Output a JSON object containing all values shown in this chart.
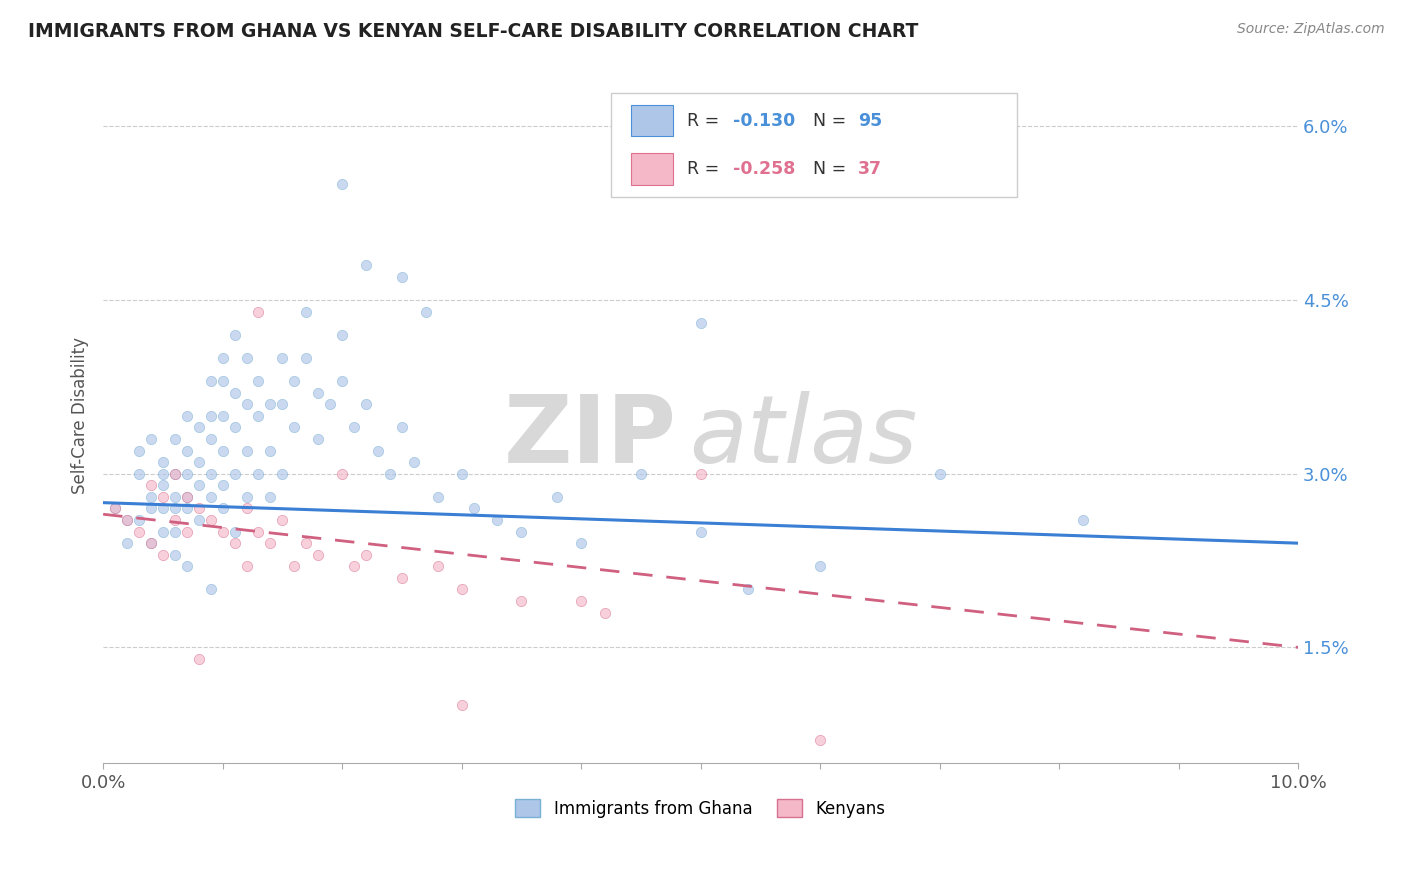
{
  "title": "IMMIGRANTS FROM GHANA VS KENYAN SELF-CARE DISABILITY CORRELATION CHART",
  "source": "Source: ZipAtlas.com",
  "ylabel": "Self-Care Disability",
  "legend_entries": [
    {
      "label": "Immigrants from Ghana",
      "color": "#aec6e8",
      "edge": "#7ab0d4"
    },
    {
      "label": "Kenyans",
      "color": "#f4b8c8",
      "edge": "#d87090"
    }
  ],
  "r_labels": [
    {
      "r_text": "R = ",
      "r_val": "-0.130",
      "n_text": "N = ",
      "n_val": "95",
      "color": "#4a90d9",
      "box_color": "#aec6e8"
    },
    {
      "r_text": "R = ",
      "r_val": "-0.258",
      "n_text": "N = ",
      "n_val": "37",
      "color": "#e07090",
      "box_color": "#f4b8c8"
    }
  ],
  "xlim": [
    0.0,
    0.1
  ],
  "ylim": [
    0.005,
    0.065
  ],
  "yticks": [
    0.015,
    0.03,
    0.045,
    0.06
  ],
  "ytick_labels": [
    "1.5%",
    "3.0%",
    "4.5%",
    "6.0%"
  ],
  "blue_scatter": [
    [
      0.001,
      0.027
    ],
    [
      0.002,
      0.026
    ],
    [
      0.002,
      0.024
    ],
    [
      0.003,
      0.026
    ],
    [
      0.003,
      0.03
    ],
    [
      0.003,
      0.032
    ],
    [
      0.004,
      0.033
    ],
    [
      0.004,
      0.028
    ],
    [
      0.004,
      0.027
    ],
    [
      0.004,
      0.024
    ],
    [
      0.005,
      0.031
    ],
    [
      0.005,
      0.03
    ],
    [
      0.005,
      0.029
    ],
    [
      0.005,
      0.027
    ],
    [
      0.005,
      0.025
    ],
    [
      0.006,
      0.033
    ],
    [
      0.006,
      0.03
    ],
    [
      0.006,
      0.028
    ],
    [
      0.006,
      0.027
    ],
    [
      0.006,
      0.025
    ],
    [
      0.006,
      0.023
    ],
    [
      0.007,
      0.035
    ],
    [
      0.007,
      0.032
    ],
    [
      0.007,
      0.03
    ],
    [
      0.007,
      0.028
    ],
    [
      0.007,
      0.027
    ],
    [
      0.007,
      0.022
    ],
    [
      0.008,
      0.034
    ],
    [
      0.008,
      0.031
    ],
    [
      0.008,
      0.029
    ],
    [
      0.008,
      0.026
    ],
    [
      0.009,
      0.038
    ],
    [
      0.009,
      0.035
    ],
    [
      0.009,
      0.033
    ],
    [
      0.009,
      0.03
    ],
    [
      0.009,
      0.028
    ],
    [
      0.009,
      0.02
    ],
    [
      0.01,
      0.04
    ],
    [
      0.01,
      0.038
    ],
    [
      0.01,
      0.035
    ],
    [
      0.01,
      0.032
    ],
    [
      0.01,
      0.029
    ],
    [
      0.01,
      0.027
    ],
    [
      0.011,
      0.042
    ],
    [
      0.011,
      0.037
    ],
    [
      0.011,
      0.034
    ],
    [
      0.011,
      0.03
    ],
    [
      0.011,
      0.025
    ],
    [
      0.012,
      0.04
    ],
    [
      0.012,
      0.036
    ],
    [
      0.012,
      0.032
    ],
    [
      0.012,
      0.028
    ],
    [
      0.013,
      0.038
    ],
    [
      0.013,
      0.035
    ],
    [
      0.013,
      0.03
    ],
    [
      0.014,
      0.036
    ],
    [
      0.014,
      0.032
    ],
    [
      0.014,
      0.028
    ],
    [
      0.015,
      0.04
    ],
    [
      0.015,
      0.036
    ],
    [
      0.015,
      0.03
    ],
    [
      0.016,
      0.038
    ],
    [
      0.016,
      0.034
    ],
    [
      0.017,
      0.044
    ],
    [
      0.017,
      0.04
    ],
    [
      0.018,
      0.037
    ],
    [
      0.018,
      0.033
    ],
    [
      0.019,
      0.036
    ],
    [
      0.02,
      0.042
    ],
    [
      0.02,
      0.038
    ],
    [
      0.021,
      0.034
    ],
    [
      0.022,
      0.036
    ],
    [
      0.023,
      0.032
    ],
    [
      0.024,
      0.03
    ],
    [
      0.025,
      0.034
    ],
    [
      0.026,
      0.031
    ],
    [
      0.028,
      0.028
    ],
    [
      0.03,
      0.03
    ],
    [
      0.031,
      0.027
    ],
    [
      0.033,
      0.026
    ],
    [
      0.035,
      0.025
    ],
    [
      0.038,
      0.028
    ],
    [
      0.04,
      0.024
    ],
    [
      0.045,
      0.03
    ],
    [
      0.05,
      0.025
    ],
    [
      0.054,
      0.02
    ],
    [
      0.06,
      0.022
    ],
    [
      0.07,
      0.03
    ],
    [
      0.02,
      0.055
    ],
    [
      0.022,
      0.048
    ],
    [
      0.025,
      0.047
    ],
    [
      0.027,
      0.044
    ],
    [
      0.05,
      0.043
    ],
    [
      0.082,
      0.026
    ]
  ],
  "pink_scatter": [
    [
      0.001,
      0.027
    ],
    [
      0.002,
      0.026
    ],
    [
      0.003,
      0.025
    ],
    [
      0.004,
      0.029
    ],
    [
      0.004,
      0.024
    ],
    [
      0.005,
      0.028
    ],
    [
      0.005,
      0.023
    ],
    [
      0.006,
      0.03
    ],
    [
      0.006,
      0.026
    ],
    [
      0.007,
      0.028
    ],
    [
      0.007,
      0.025
    ],
    [
      0.008,
      0.027
    ],
    [
      0.009,
      0.026
    ],
    [
      0.01,
      0.025
    ],
    [
      0.011,
      0.024
    ],
    [
      0.012,
      0.027
    ],
    [
      0.012,
      0.022
    ],
    [
      0.013,
      0.025
    ],
    [
      0.014,
      0.024
    ],
    [
      0.015,
      0.026
    ],
    [
      0.016,
      0.022
    ],
    [
      0.017,
      0.024
    ],
    [
      0.018,
      0.023
    ],
    [
      0.02,
      0.03
    ],
    [
      0.021,
      0.022
    ],
    [
      0.022,
      0.023
    ],
    [
      0.025,
      0.021
    ],
    [
      0.028,
      0.022
    ],
    [
      0.03,
      0.02
    ],
    [
      0.035,
      0.019
    ],
    [
      0.04,
      0.019
    ],
    [
      0.042,
      0.018
    ],
    [
      0.013,
      0.044
    ],
    [
      0.05,
      0.03
    ],
    [
      0.06,
      0.007
    ],
    [
      0.03,
      0.01
    ],
    [
      0.008,
      0.014
    ]
  ],
  "blue_line_x": [
    0.0,
    0.1
  ],
  "blue_line_y": [
    0.0275,
    0.024
  ],
  "pink_line_x": [
    0.0,
    0.1
  ],
  "pink_line_y": [
    0.0265,
    0.015
  ],
  "background_color": "#ffffff",
  "grid_color": "#cccccc",
  "watermark_zip": "ZIP",
  "watermark_atlas": "atlas",
  "dot_size": 55,
  "dot_alpha": 0.65
}
